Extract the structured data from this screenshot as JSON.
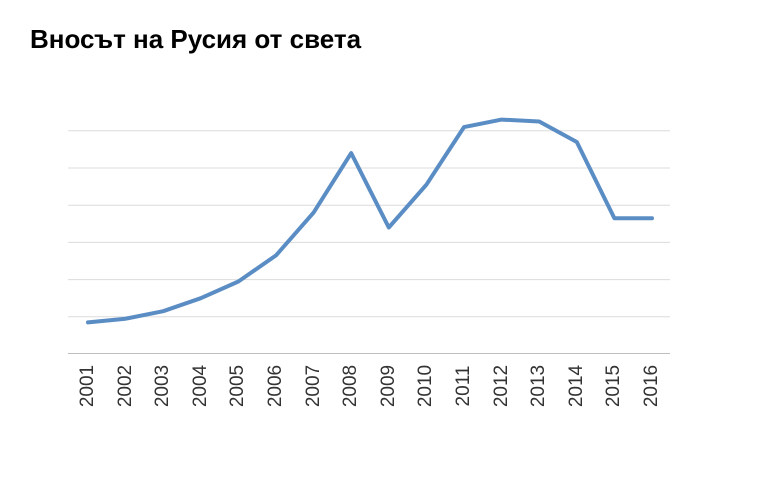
{
  "title": "Вносът на Русия от света",
  "colors": {
    "background": "#ffffff",
    "title_text": "#000000",
    "axis_label_text": "#333333",
    "gridline": "#dcdcdc",
    "axis_line": "#bfbfbf",
    "series_line": "#5b8dc5"
  },
  "chart_data": {
    "type": "line",
    "title": "Вносът на Русия от света",
    "categories": [
      "2001",
      "2002",
      "2003",
      "2004",
      "2005",
      "2006",
      "2007",
      "2008",
      "2009",
      "2010",
      "2011",
      "2012",
      "2013",
      "2014",
      "2015",
      "2016"
    ],
    "values": [
      0.85,
      0.95,
      1.15,
      1.5,
      1.95,
      2.65,
      3.8,
      5.4,
      3.4,
      4.55,
      6.1,
      6.3,
      6.25,
      5.7,
      3.65,
      3.65
    ],
    "values_unit": "gridline intervals above baseline (y-axis has no tick labels)",
    "xlabel": "",
    "ylabel": "",
    "ylim": [
      0,
      6.6
    ],
    "grid": "horizontal",
    "gridline_count": 6,
    "legend": "none",
    "x_label_rotation_deg": -90,
    "line_color": "#5b8dc5"
  }
}
